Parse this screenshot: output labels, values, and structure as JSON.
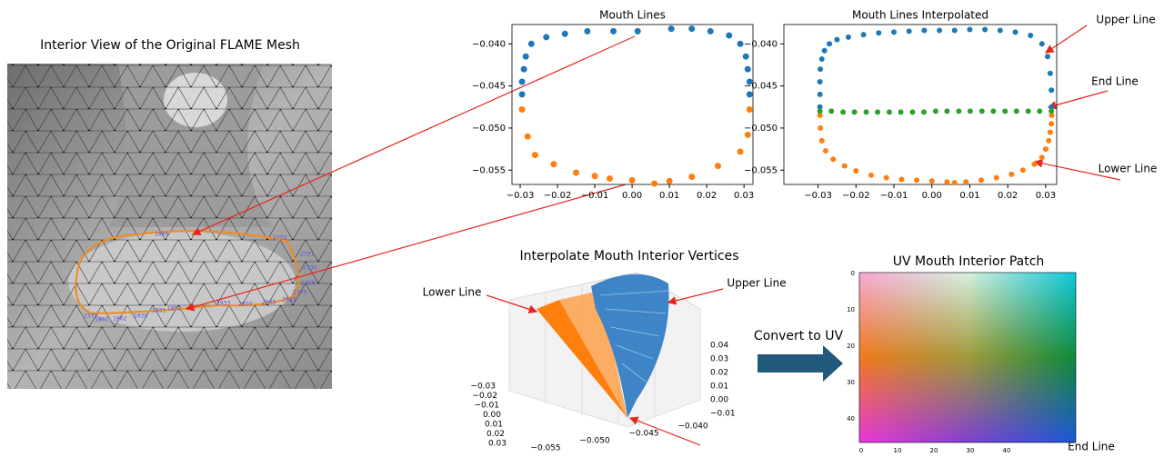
{
  "mesh": {
    "title": "Interior View of the Original FLAME Mesh",
    "vertex_labels": [
      "1573",
      "1860",
      "1862",
      "1830",
      "1831",
      "1852",
      "2933",
      "2930",
      "2945",
      "2943",
      "2700",
      "2708",
      "2730",
      "2731",
      "1886",
      "2732"
    ]
  },
  "chart_data": [
    {
      "type": "scatter",
      "title": "Mouth Lines",
      "xlim": [
        -0.0322,
        0.0324
      ],
      "ylim": [
        -0.0567,
        -0.0377
      ],
      "xticks": [
        {
          "value": -0.03,
          "label": "−0.03"
        },
        {
          "value": -0.02,
          "label": "−0.02"
        },
        {
          "value": -0.01,
          "label": "−0.01"
        },
        {
          "value": 0,
          "label": "0.00"
        },
        0.01,
        0.02,
        0.03
      ],
      "yticks": [
        {
          "value": -0.04,
          "label": "−0.040"
        },
        {
          "value": -0.045,
          "label": "−0.045"
        },
        {
          "value": -0.05,
          "label": "−0.050"
        },
        {
          "value": -0.055,
          "label": "−0.055"
        }
      ],
      "series": [
        {
          "color": "#1f77b4",
          "x": [
            -0.0295,
            -0.0295,
            -0.029,
            -0.0285,
            -0.027,
            -0.023,
            -0.018,
            -0.012,
            -0.005,
            0.0015,
            0.0105,
            0.016,
            0.021,
            0.026,
            0.029,
            0.0305,
            0.031,
            0.0315,
            0.0315
          ],
          "values": [
            -0.046,
            -0.0445,
            -0.043,
            -0.0415,
            -0.04,
            -0.0392,
            -0.0388,
            -0.0385,
            -0.0385,
            -0.0385,
            -0.0382,
            -0.0382,
            -0.0385,
            -0.039,
            -0.04,
            -0.0415,
            -0.043,
            -0.0445,
            -0.046
          ]
        },
        {
          "color": "#ff7f0e",
          "x": [
            -0.0295,
            -0.028,
            -0.026,
            -0.021,
            -0.015,
            -0.01,
            -0.006,
            0.0,
            0.006,
            0.01,
            0.016,
            0.023,
            0.029,
            0.031,
            0.0315
          ],
          "values": [
            -0.0478,
            -0.051,
            -0.0532,
            -0.0543,
            -0.0553,
            -0.0557,
            -0.056,
            -0.0562,
            -0.0566,
            -0.0563,
            -0.0558,
            -0.0545,
            -0.0528,
            -0.0508,
            -0.0478
          ]
        }
      ]
    },
    {
      "type": "scatter",
      "title": "Mouth Lines Interpolated",
      "xlim": [
        -0.039,
        0.0329
      ],
      "ylim": [
        -0.0567,
        -0.0377
      ],
      "xticks": [
        {
          "value": -0.03,
          "label": "−0.03"
        },
        {
          "value": -0.02,
          "label": "−0.02"
        },
        {
          "value": -0.01,
          "label": "−0.01"
        },
        {
          "value": 0,
          "label": "0.00"
        },
        0.01,
        0.02,
        0.03
      ],
      "yticks": [
        {
          "value": -0.04,
          "label": "−0.040"
        },
        {
          "value": -0.045,
          "label": "−0.045"
        },
        {
          "value": -0.05,
          "label": "−0.050"
        },
        {
          "value": -0.055,
          "label": "−0.055"
        }
      ],
      "annotations": [
        "Upper Line",
        "End Line",
        "Lower Line"
      ],
      "series": [
        {
          "color": "#1f77b4",
          "x": [
            -0.0295,
            -0.0295,
            -0.0295,
            -0.0294,
            -0.029,
            -0.0283,
            -0.027,
            -0.025,
            -0.022,
            -0.018,
            -0.014,
            -0.01,
            -0.006,
            -0.002,
            0.002,
            0.006,
            0.01,
            0.014,
            0.018,
            0.022,
            0.026,
            0.029,
            0.0305,
            0.0312,
            0.0315,
            0.0315
          ],
          "values": [
            -0.0475,
            -0.046,
            -0.0445,
            -0.043,
            -0.0418,
            -0.0408,
            -0.04,
            -0.0395,
            -0.0392,
            -0.0389,
            -0.0387,
            -0.0386,
            -0.0385,
            -0.0384,
            -0.0384,
            -0.0384,
            -0.0383,
            -0.0383,
            -0.0384,
            -0.0386,
            -0.039,
            -0.04,
            -0.0415,
            -0.0435,
            -0.0455,
            -0.0475
          ]
        },
        {
          "color": "#ff7f0e",
          "x": [
            -0.0295,
            -0.0294,
            -0.029,
            -0.028,
            -0.026,
            -0.023,
            -0.02,
            -0.016,
            -0.012,
            -0.008,
            -0.004,
            0.0,
            0.004,
            0.006,
            0.009,
            0.013,
            0.017,
            0.021,
            0.024,
            0.027,
            0.029,
            0.03,
            0.0308,
            0.0312,
            0.0315,
            0.0316
          ],
          "values": [
            -0.0485,
            -0.05,
            -0.0515,
            -0.0527,
            -0.0537,
            -0.0545,
            -0.0551,
            -0.0556,
            -0.0559,
            -0.0561,
            -0.0562,
            -0.0563,
            -0.0564,
            -0.0565,
            -0.0564,
            -0.0562,
            -0.0559,
            -0.0555,
            -0.055,
            -0.0543,
            -0.0535,
            -0.0525,
            -0.0515,
            -0.0505,
            -0.0495,
            -0.0485
          ]
        },
        {
          "color": "#2ca02c",
          "x": [
            -0.0295,
            -0.0265,
            -0.0234,
            -0.0204,
            -0.0173,
            -0.0143,
            -0.0112,
            -0.0082,
            -0.0051,
            -0.0021,
            0.001,
            0.004,
            0.0071,
            0.0101,
            0.0132,
            0.0162,
            0.0193,
            0.0223,
            0.0254,
            0.0284,
            0.0315
          ],
          "values": [
            -0.048,
            -0.048,
            -0.0481,
            -0.0481,
            -0.0481,
            -0.0481,
            -0.0481,
            -0.0481,
            -0.0481,
            -0.0481,
            -0.048,
            -0.048,
            -0.048,
            -0.048,
            -0.048,
            -0.048,
            -0.048,
            -0.048,
            -0.048,
            -0.048,
            -0.048
          ]
        }
      ]
    }
  ],
  "plot3d": {
    "title": "Interpolate Mouth Interior Vertices",
    "annotations": [
      "Lower Line",
      "Upper Line",
      "End Line"
    ],
    "x_tick_labels": [
      "−0.03",
      "−0.02",
      "−0.01",
      "0.00",
      "0.01",
      "0.02",
      "0.03"
    ],
    "y_tick_labels": [
      "−0.055",
      "−0.050",
      "−0.045",
      "−0.040"
    ],
    "z_tick_labels": [
      "0.04",
      "0.03",
      "0.02",
      "0.01",
      "0.00",
      "−0.01"
    ]
  },
  "convert_label": "Convert to UV",
  "uv_patch": {
    "title": "UV Mouth Interior Patch",
    "y_tick_labels": [
      "0",
      "10",
      "20",
      "30",
      "40"
    ],
    "x_tick_labels": [
      "0",
      "10",
      "20",
      "30",
      "40"
    ]
  }
}
